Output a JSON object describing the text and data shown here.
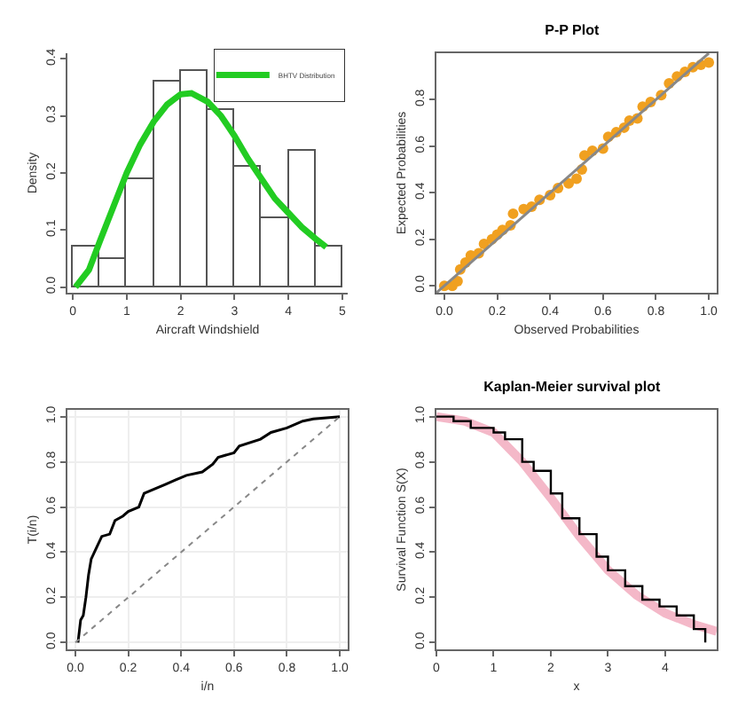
{
  "chart_data": [
    {
      "type": "histogram",
      "xlabel": "Aircraft Windshield",
      "ylabel": "Density",
      "bins": [
        0,
        0.5,
        1,
        1.5,
        2,
        2.5,
        3,
        3.5,
        4,
        4.5,
        5
      ],
      "values": [
        0.07,
        0.05,
        0.19,
        0.36,
        0.38,
        0.31,
        0.21,
        0.12,
        0.24,
        0.07
      ],
      "color": "#ffffff",
      "xlim": [
        -0.1,
        5.1
      ],
      "ylim": [
        -0.01,
        0.41
      ],
      "xticks": [
        0,
        1,
        2,
        3,
        4,
        5
      ],
      "yticks": [
        {
          "value": 0,
          "label": "0.0"
        },
        {
          "value": 0.1,
          "label": "0.1"
        },
        {
          "value": 0.2,
          "label": "0.2"
        },
        {
          "value": 0.3,
          "label": "0.3"
        },
        {
          "value": 0.4,
          "label": "0.4"
        }
      ],
      "legend": "top right",
      "grid": false,
      "series": [
        {
          "name": "BHTV Distribution",
          "type": "line",
          "color": "#22cc22",
          "x": [
            0.05,
            0.3,
            0.5,
            0.75,
            1.0,
            1.25,
            1.5,
            1.75,
            2.0,
            2.2,
            2.5,
            2.75,
            3.0,
            3.25,
            3.5,
            3.75,
            4.0,
            4.25,
            4.5,
            4.7
          ],
          "values": [
            0.0,
            0.03,
            0.08,
            0.14,
            0.2,
            0.25,
            0.29,
            0.32,
            0.338,
            0.34,
            0.325,
            0.3,
            0.265,
            0.225,
            0.19,
            0.155,
            0.13,
            0.105,
            0.085,
            0.07
          ]
        }
      ]
    },
    {
      "type": "scatter",
      "title": "P-P Plot",
      "xlabel": "Observed Probabilities",
      "ylabel": "Expected Probabilities",
      "xlim": [
        -0.03,
        1.03
      ],
      "ylim": [
        -0.03,
        1.0
      ],
      "xticks": [
        {
          "value": 0,
          "label": "0.0"
        },
        {
          "value": 0.2,
          "label": "0.2"
        },
        {
          "value": 0.4,
          "label": "0.4"
        },
        {
          "value": 0.6,
          "label": "0.6"
        },
        {
          "value": 0.8,
          "label": "0.8"
        },
        {
          "value": 1,
          "label": "1.0"
        }
      ],
      "yticks": [
        {
          "value": 0,
          "label": "0.0"
        },
        {
          "value": 0.2,
          "label": "0.2"
        },
        {
          "value": 0.4,
          "label": "0.4"
        },
        {
          "value": 0.6,
          "label": "0.6"
        },
        {
          "value": 0.8,
          "label": "0.8"
        }
      ],
      "grid": false,
      "series": [
        {
          "color": "#f0a020",
          "marker": "circle",
          "x": [
            0.0,
            0.03,
            0.05,
            0.06,
            0.08,
            0.1,
            0.13,
            0.15,
            0.18,
            0.2,
            0.22,
            0.25,
            0.26,
            0.3,
            0.33,
            0.36,
            0.4,
            0.43,
            0.47,
            0.5,
            0.52,
            0.53,
            0.56,
            0.6,
            0.62,
            0.65,
            0.68,
            0.7,
            0.73,
            0.75,
            0.78,
            0.82,
            0.85,
            0.88,
            0.91,
            0.94,
            0.97,
            1.0
          ],
          "values": [
            0.0,
            0.0,
            0.02,
            0.07,
            0.1,
            0.13,
            0.14,
            0.18,
            0.2,
            0.22,
            0.24,
            0.26,
            0.31,
            0.33,
            0.34,
            0.37,
            0.39,
            0.42,
            0.44,
            0.46,
            0.5,
            0.56,
            0.58,
            0.59,
            0.64,
            0.66,
            0.68,
            0.71,
            0.72,
            0.77,
            0.79,
            0.82,
            0.87,
            0.9,
            0.92,
            0.94,
            0.95,
            0.96
          ]
        },
        {
          "type": "line",
          "color": "#888888",
          "x": [
            -0.03,
            1.0
          ],
          "values": [
            -0.03,
            1.0
          ]
        }
      ]
    },
    {
      "type": "line",
      "xlabel": "i/n",
      "ylabel": "T(i/n)",
      "xlim": [
        -0.03,
        1.03
      ],
      "ylim": [
        -0.03,
        1.03
      ],
      "xticks": [
        {
          "value": 0,
          "label": "0.0"
        },
        {
          "value": 0.2,
          "label": "0.2"
        },
        {
          "value": 0.4,
          "label": "0.4"
        },
        {
          "value": 0.6,
          "label": "0.6"
        },
        {
          "value": 0.8,
          "label": "0.8"
        },
        {
          "value": 1,
          "label": "1.0"
        }
      ],
      "yticks": [
        {
          "value": 0,
          "label": "0.0"
        },
        {
          "value": 0.2,
          "label": "0.2"
        },
        {
          "value": 0.4,
          "label": "0.4"
        },
        {
          "value": 0.6,
          "label": "0.6"
        },
        {
          "value": 0.8,
          "label": "0.8"
        },
        {
          "value": 1,
          "label": "1.0"
        }
      ],
      "grid": true,
      "series": [
        {
          "color": "#000000",
          "x": [
            0.01,
            0.02,
            0.03,
            0.04,
            0.05,
            0.06,
            0.08,
            0.1,
            0.13,
            0.15,
            0.18,
            0.2,
            0.24,
            0.26,
            0.3,
            0.34,
            0.38,
            0.42,
            0.48,
            0.52,
            0.54,
            0.6,
            0.62,
            0.7,
            0.74,
            0.8,
            0.86,
            0.9,
            1.0
          ],
          "values": [
            0.0,
            0.1,
            0.12,
            0.2,
            0.3,
            0.37,
            0.42,
            0.47,
            0.48,
            0.54,
            0.56,
            0.58,
            0.6,
            0.66,
            0.68,
            0.7,
            0.72,
            0.74,
            0.755,
            0.79,
            0.82,
            0.84,
            0.87,
            0.9,
            0.93,
            0.95,
            0.98,
            0.99,
            1.0
          ]
        },
        {
          "color": "#888888",
          "line_style": "dotted",
          "x": [
            0,
            1
          ],
          "values": [
            0,
            1
          ]
        }
      ]
    },
    {
      "type": "step",
      "title": "Kaplan-Meier survival plot",
      "xlabel": "x",
      "ylabel": "Survival Function S(X)",
      "xlim": [
        0,
        4.9
      ],
      "ylim": [
        -0.03,
        1.03
      ],
      "xticks": [
        0,
        1,
        2,
        3,
        4
      ],
      "yticks": [
        {
          "value": 0,
          "label": "0.0"
        },
        {
          "value": 0.2,
          "label": "0.2"
        },
        {
          "value": 0.4,
          "label": "0.4"
        },
        {
          "value": 0.6,
          "label": "0.6"
        },
        {
          "value": 0.8,
          "label": "0.8"
        },
        {
          "value": 1,
          "label": "1.0"
        }
      ],
      "grid": false,
      "series": [
        {
          "type": "line",
          "color": "#f4b8c8",
          "x": [
            0,
            0.5,
            1,
            1.5,
            2,
            2.5,
            3,
            3.5,
            4,
            4.5,
            4.9
          ],
          "values": [
            1.0,
            0.98,
            0.93,
            0.8,
            0.64,
            0.47,
            0.32,
            0.21,
            0.13,
            0.08,
            0.05
          ]
        },
        {
          "color": "#000000",
          "x": [
            0,
            0.3,
            0.6,
            1.0,
            1.2,
            1.5,
            1.7,
            2.0,
            2.2,
            2.5,
            2.8,
            3.0,
            3.3,
            3.6,
            3.9,
            4.2,
            4.5,
            4.7
          ],
          "values": [
            1.0,
            0.98,
            0.95,
            0.93,
            0.9,
            0.8,
            0.76,
            0.66,
            0.55,
            0.48,
            0.38,
            0.32,
            0.25,
            0.19,
            0.16,
            0.12,
            0.06,
            0.0
          ]
        }
      ]
    }
  ]
}
